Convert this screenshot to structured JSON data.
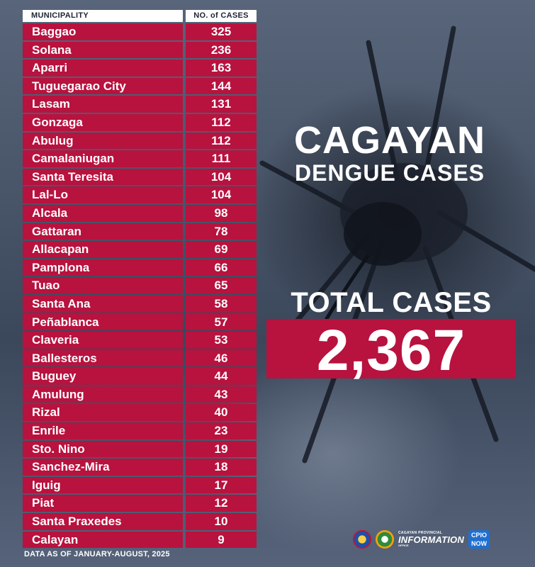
{
  "table": {
    "header_municipality": "MUNICIPALITY",
    "header_cases": "NO. of CASES",
    "rows": [
      {
        "name": "Baggao",
        "cases": "325"
      },
      {
        "name": "Solana",
        "cases": "236"
      },
      {
        "name": "Aparri",
        "cases": "163"
      },
      {
        "name": "Tuguegarao City",
        "cases": "144"
      },
      {
        "name": "Lasam",
        "cases": "131"
      },
      {
        "name": "Gonzaga",
        "cases": "112"
      },
      {
        "name": "Abulug",
        "cases": "112"
      },
      {
        "name": "Camalaniugan",
        "cases": "111"
      },
      {
        "name": "Santa Teresita",
        "cases": "104"
      },
      {
        "name": "Lal-Lo",
        "cases": "104"
      },
      {
        "name": "Alcala",
        "cases": "98"
      },
      {
        "name": "Gattaran",
        "cases": "78"
      },
      {
        "name": "Allacapan",
        "cases": "69"
      },
      {
        "name": "Pamplona",
        "cases": "66"
      },
      {
        "name": "Tuao",
        "cases": "65"
      },
      {
        "name": "Santa Ana",
        "cases": "58"
      },
      {
        "name": "Peñablanca",
        "cases": "57"
      },
      {
        "name": "Claveria",
        "cases": "53"
      },
      {
        "name": "Ballesteros",
        "cases": "46"
      },
      {
        "name": "Buguey",
        "cases": "44"
      },
      {
        "name": "Amulung",
        "cases": "43"
      },
      {
        "name": "Rizal",
        "cases": "40"
      },
      {
        "name": "Enrile",
        "cases": "23"
      },
      {
        "name": "Sto. Nino",
        "cases": "19"
      },
      {
        "name": "Sanchez-Mira",
        "cases": "18"
      },
      {
        "name": "Iguig",
        "cases": "17"
      },
      {
        "name": "Piat",
        "cases": "12"
      },
      {
        "name": "Santa Praxedes",
        "cases": "10"
      },
      {
        "name": "Calayan",
        "cases": "9"
      }
    ]
  },
  "title": {
    "line1": "CAGAYAN",
    "line2": "DENGUE CASES"
  },
  "total": {
    "label": "TOTAL CASES",
    "value": "2,367"
  },
  "footnote": "DATA AS OF JANUARY-AUGUST, 2025",
  "logos": {
    "pio_line1": "CAGAYAN PROVINCIAL",
    "pio_line2": "INFORMATION",
    "pio_line3": "OFFICE",
    "cpio_line1": "CPIO",
    "cpio_line2": "NOW"
  },
  "colors": {
    "accent": "#b8123f",
    "background": "#3a4558",
    "text": "#ffffff"
  }
}
